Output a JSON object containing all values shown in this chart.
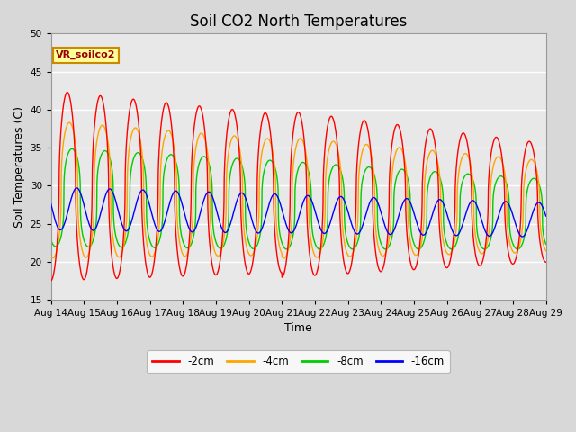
{
  "title": "Soil CO2 North Temperatures",
  "ylabel": "Soil Temperatures (C)",
  "xlabel": "Time",
  "ylim": [
    15,
    50
  ],
  "legend_label": "VR_soilco2",
  "series_labels": [
    "-2cm",
    "-4cm",
    "-8cm",
    "-16cm"
  ],
  "series_colors": [
    "#ff0000",
    "#ffa500",
    "#00cc00",
    "#0000ff"
  ],
  "xtick_labels": [
    "Aug 14",
    "Aug 15",
    "Aug 16",
    "Aug 17",
    "Aug 18",
    "Aug 19",
    "Aug 20",
    "Aug 21",
    "Aug 22",
    "Aug 23",
    "Aug 24",
    "Aug 25",
    "Aug 26",
    "Aug 27",
    "Aug 28",
    "Aug 29"
  ],
  "background_color": "#d8d8d8",
  "plot_bg_color": "#e8e8e8",
  "title_fontsize": 12,
  "axis_fontsize": 9,
  "tick_fontsize": 7.5,
  "legend_box_color": "#ffff99",
  "legend_box_edge": "#cc8800"
}
